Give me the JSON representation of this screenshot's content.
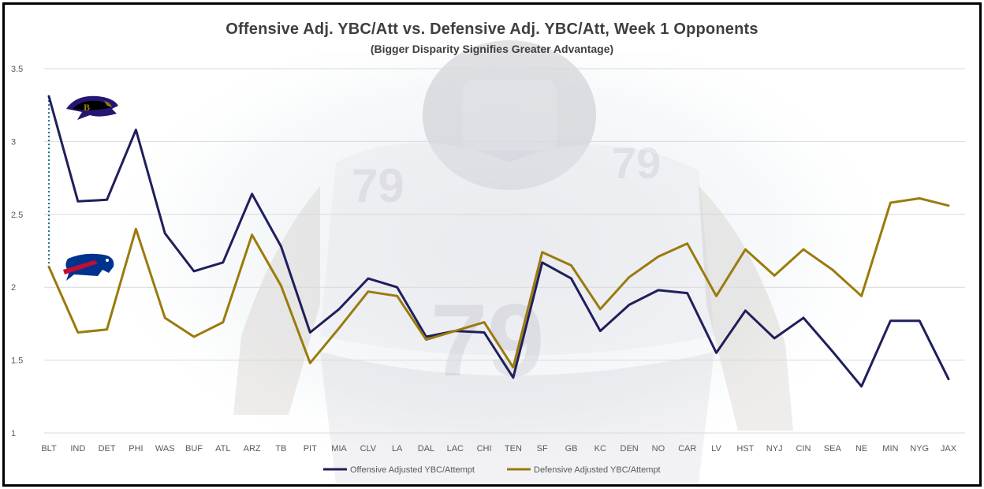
{
  "title": "Offensive Adj. YBC/Att vs. Defensive Adj. YBC/Att, Week 1 Opponents",
  "subtitle": "(Bigger Disparity Signifies Greater Advantage)",
  "chart_data": {
    "type": "line",
    "title": "Offensive Adj. YBC/Att vs. Defensive Adj. YBC/Att, Week 1 Opponents",
    "subtitle": "(Bigger Disparity Signifies Greater Advantage)",
    "categories": [
      "BLT",
      "IND",
      "DET",
      "PHI",
      "WAS",
      "BUF",
      "ATL",
      "ARZ",
      "TB",
      "PIT",
      "MIA",
      "CLV",
      "LA",
      "DAL",
      "LAC",
      "CHI",
      "TEN",
      "SF",
      "GB",
      "KC",
      "DEN",
      "NO",
      "CAR",
      "LV",
      "HST",
      "NYJ",
      "CIN",
      "SEA",
      "NE",
      "MIN",
      "NYG",
      "JAX"
    ],
    "series": [
      {
        "name": "Offensive Adjusted YBC/Attempt",
        "color": "#1f1f5c",
        "values": [
          3.31,
          2.59,
          2.6,
          3.08,
          2.37,
          2.11,
          2.17,
          2.64,
          2.28,
          1.69,
          1.85,
          2.06,
          2.0,
          1.66,
          1.7,
          1.69,
          1.38,
          2.17,
          2.06,
          1.7,
          1.88,
          1.98,
          1.96,
          1.55,
          1.84,
          1.65,
          1.79,
          1.56,
          1.32,
          1.77,
          1.77,
          1.37
        ]
      },
      {
        "name": "Defensive Adjusted YBC/Attempt",
        "color": "#9a7b0c",
        "values": [
          2.14,
          1.69,
          1.71,
          2.4,
          1.79,
          1.66,
          1.76,
          2.36,
          2.01,
          1.48,
          1.72,
          1.97,
          1.94,
          1.64,
          1.7,
          1.76,
          1.45,
          2.24,
          2.15,
          1.85,
          2.07,
          2.21,
          2.3,
          1.94,
          2.26,
          2.08,
          2.26,
          2.12,
          1.94,
          2.58,
          2.61,
          2.56
        ]
      }
    ],
    "ylim": [
      1,
      3.5
    ],
    "yticks": [
      "1",
      "1.5",
      "2",
      "2.5",
      "3",
      "3.5"
    ],
    "grid": true,
    "legend": "bottom",
    "annotations": [
      {
        "type": "dotted-connector",
        "category": "BLT",
        "from_series": 0,
        "to_series": 1,
        "color": "#1a6e8a"
      },
      {
        "type": "logo",
        "name": "ravens-logo",
        "near_series": 0
      },
      {
        "type": "logo",
        "name": "bills-logo",
        "near_series": 1
      }
    ]
  }
}
